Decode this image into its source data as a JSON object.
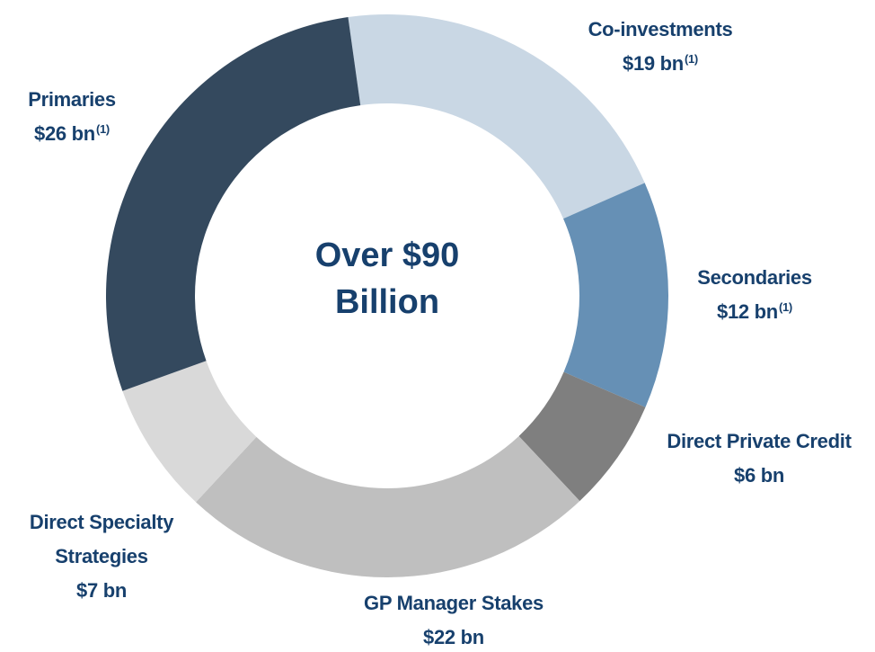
{
  "chart_data": {
    "type": "donut",
    "categories": [
      "Co-investments",
      "Secondaries",
      "Direct Private Credit",
      "GP Manager Stakes",
      "Direct Specialty Strategies",
      "Primaries"
    ],
    "values": [
      19,
      12,
      6,
      22,
      7,
      26
    ],
    "value_labels": [
      "$19 bn",
      "$12 bn",
      "$6 bn",
      "$22 bn",
      "$7 bn",
      "$26 bn"
    ],
    "footnotes": [
      "(1)",
      "(1)",
      null,
      null,
      null,
      "(1)"
    ],
    "colors": [
      "#c9d7e4",
      "#6690b5",
      "#7f7f7f",
      "#bfbfbf",
      "#d9d9d9",
      "#34495e"
    ],
    "center_label": "Over $90 Billion"
  }
}
